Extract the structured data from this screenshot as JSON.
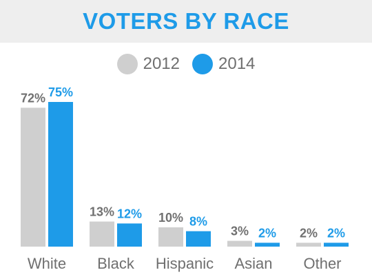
{
  "colors": {
    "s2012": "#cfcfcf",
    "s2014": "#1e9be8",
    "label2012": "#707070",
    "axis": "#6f6f6f"
  },
  "chart_data": {
    "type": "bar",
    "title": "VOTERS BY RACE",
    "categories": [
      "White",
      "Black",
      "Hispanic",
      "Asian",
      "Other"
    ],
    "series": [
      {
        "name": "2012",
        "values": [
          72,
          13,
          10,
          3,
          2
        ],
        "labels": [
          "72%",
          "13%",
          "10%",
          "3%",
          "2%"
        ]
      },
      {
        "name": "2014",
        "values": [
          75,
          12,
          8,
          2,
          2
        ],
        "labels": [
          "75%",
          "12%",
          "8%",
          "2%",
          "2%"
        ]
      }
    ],
    "legend": "top-center",
    "grid": false
  }
}
